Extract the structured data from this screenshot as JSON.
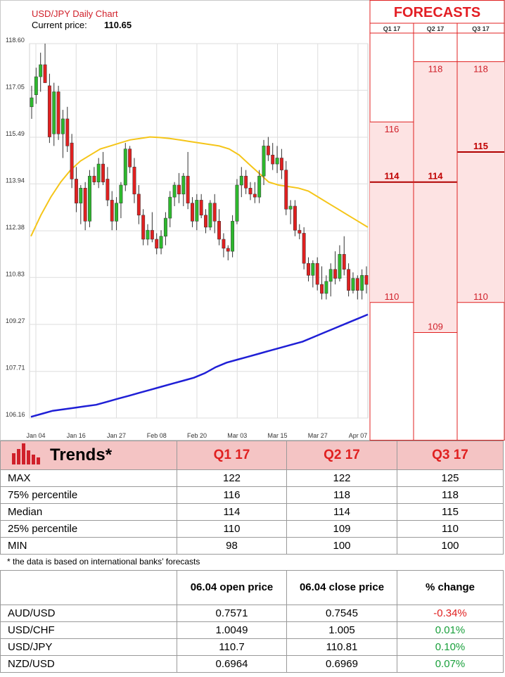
{
  "chart_data": {
    "type": "candlestick",
    "title": "USD/JPY Daily Chart",
    "current_price_label": "Current price:",
    "current_price": "110.65",
    "y_ticks": [
      "118.60",
      "117.05",
      "115.49",
      "113.94",
      "112.38",
      "110.83",
      "109.27",
      "107.71",
      "106.16"
    ],
    "ylim": [
      106.16,
      118.6
    ],
    "x_ticks": [
      "Jan 04",
      "Jan 16",
      "Jan 27",
      "Feb 08",
      "Feb 20",
      "Mar 03",
      "Mar 15",
      "Mar 27",
      "Apr 07"
    ],
    "candles": [
      {
        "o": 116.5,
        "h": 117.2,
        "l": 116.1,
        "c": 116.8
      },
      {
        "o": 116.9,
        "h": 117.8,
        "l": 116.6,
        "c": 117.5
      },
      {
        "o": 117.5,
        "h": 118.3,
        "l": 117.0,
        "c": 117.9
      },
      {
        "o": 117.9,
        "h": 118.6,
        "l": 117.3,
        "c": 117.3
      },
      {
        "o": 117.2,
        "h": 117.6,
        "l": 115.3,
        "c": 115.5
      },
      {
        "o": 115.6,
        "h": 117.3,
        "l": 115.2,
        "c": 117.0
      },
      {
        "o": 117.0,
        "h": 117.2,
        "l": 115.4,
        "c": 115.6
      },
      {
        "o": 115.6,
        "h": 116.4,
        "l": 114.8,
        "c": 116.1
      },
      {
        "o": 116.1,
        "h": 116.5,
        "l": 115.0,
        "c": 115.2
      },
      {
        "o": 115.3,
        "h": 115.6,
        "l": 113.8,
        "c": 114.1
      },
      {
        "o": 114.1,
        "h": 114.5,
        "l": 113.0,
        "c": 113.3
      },
      {
        "o": 113.3,
        "h": 113.9,
        "l": 112.6,
        "c": 113.8
      },
      {
        "o": 113.8,
        "h": 114.0,
        "l": 112.4,
        "c": 112.7
      },
      {
        "o": 112.7,
        "h": 114.4,
        "l": 112.5,
        "c": 114.2
      },
      {
        "o": 114.2,
        "h": 114.5,
        "l": 113.9,
        "c": 114.0
      },
      {
        "o": 114.0,
        "h": 114.8,
        "l": 113.8,
        "c": 114.6
      },
      {
        "o": 114.6,
        "h": 115.0,
        "l": 113.9,
        "c": 114.0
      },
      {
        "o": 114.1,
        "h": 114.5,
        "l": 113.2,
        "c": 113.4
      },
      {
        "o": 113.4,
        "h": 113.7,
        "l": 112.4,
        "c": 112.7
      },
      {
        "o": 112.7,
        "h": 113.5,
        "l": 112.4,
        "c": 113.3
      },
      {
        "o": 113.3,
        "h": 114.0,
        "l": 112.8,
        "c": 113.9
      },
      {
        "o": 113.9,
        "h": 115.3,
        "l": 113.7,
        "c": 115.1
      },
      {
        "o": 115.1,
        "h": 115.2,
        "l": 114.3,
        "c": 114.5
      },
      {
        "o": 114.5,
        "h": 114.8,
        "l": 113.3,
        "c": 113.6
      },
      {
        "o": 113.6,
        "h": 113.9,
        "l": 112.6,
        "c": 112.9
      },
      {
        "o": 112.9,
        "h": 113.1,
        "l": 111.9,
        "c": 112.1
      },
      {
        "o": 112.1,
        "h": 112.6,
        "l": 111.9,
        "c": 112.4
      },
      {
        "o": 112.4,
        "h": 113.0,
        "l": 112.0,
        "c": 112.1
      },
      {
        "o": 112.1,
        "h": 112.3,
        "l": 111.6,
        "c": 111.8
      },
      {
        "o": 111.8,
        "h": 112.4,
        "l": 111.6,
        "c": 112.2
      },
      {
        "o": 112.2,
        "h": 113.0,
        "l": 111.9,
        "c": 112.8
      },
      {
        "o": 112.8,
        "h": 113.7,
        "l": 112.5,
        "c": 113.5
      },
      {
        "o": 113.5,
        "h": 114.0,
        "l": 113.2,
        "c": 113.9
      },
      {
        "o": 113.9,
        "h": 114.3,
        "l": 113.3,
        "c": 113.6
      },
      {
        "o": 113.6,
        "h": 114.3,
        "l": 113.2,
        "c": 114.2
      },
      {
        "o": 114.2,
        "h": 115.0,
        "l": 113.1,
        "c": 113.3
      },
      {
        "o": 113.3,
        "h": 113.5,
        "l": 112.5,
        "c": 112.7
      },
      {
        "o": 112.7,
        "h": 113.6,
        "l": 112.4,
        "c": 113.4
      },
      {
        "o": 113.4,
        "h": 113.6,
        "l": 112.8,
        "c": 112.9
      },
      {
        "o": 112.9,
        "h": 113.1,
        "l": 112.3,
        "c": 112.5
      },
      {
        "o": 112.5,
        "h": 113.4,
        "l": 112.4,
        "c": 113.3
      },
      {
        "o": 113.3,
        "h": 113.6,
        "l": 112.3,
        "c": 112.7
      },
      {
        "o": 112.7,
        "h": 113.1,
        "l": 111.9,
        "c": 112.1
      },
      {
        "o": 112.1,
        "h": 112.3,
        "l": 111.5,
        "c": 111.8
      },
      {
        "o": 111.8,
        "h": 111.9,
        "l": 111.4,
        "c": 111.7
      },
      {
        "o": 111.7,
        "h": 112.9,
        "l": 111.5,
        "c": 112.7
      },
      {
        "o": 112.7,
        "h": 114.1,
        "l": 112.6,
        "c": 113.9
      },
      {
        "o": 113.9,
        "h": 114.5,
        "l": 113.5,
        "c": 114.2
      },
      {
        "o": 114.2,
        "h": 114.4,
        "l": 113.6,
        "c": 113.8
      },
      {
        "o": 113.8,
        "h": 114.0,
        "l": 113.4,
        "c": 113.6
      },
      {
        "o": 113.6,
        "h": 114.0,
        "l": 113.3,
        "c": 113.5
      },
      {
        "o": 113.5,
        "h": 114.4,
        "l": 113.3,
        "c": 114.2
      },
      {
        "o": 114.2,
        "h": 115.4,
        "l": 113.9,
        "c": 115.2
      },
      {
        "o": 115.2,
        "h": 115.5,
        "l": 114.7,
        "c": 114.9
      },
      {
        "o": 114.9,
        "h": 115.3,
        "l": 114.4,
        "c": 114.6
      },
      {
        "o": 114.6,
        "h": 115.2,
        "l": 114.3,
        "c": 114.8
      },
      {
        "o": 114.8,
        "h": 115.1,
        "l": 114.1,
        "c": 114.4
      },
      {
        "o": 114.4,
        "h": 114.7,
        "l": 112.9,
        "c": 113.1
      },
      {
        "o": 113.1,
        "h": 113.4,
        "l": 112.6,
        "c": 113.2
      },
      {
        "o": 113.2,
        "h": 113.4,
        "l": 112.2,
        "c": 112.4
      },
      {
        "o": 112.4,
        "h": 112.6,
        "l": 112.1,
        "c": 112.3
      },
      {
        "o": 112.3,
        "h": 112.5,
        "l": 111.1,
        "c": 111.3
      },
      {
        "o": 111.3,
        "h": 111.5,
        "l": 110.7,
        "c": 110.9
      },
      {
        "o": 110.9,
        "h": 111.4,
        "l": 110.5,
        "c": 111.3
      },
      {
        "o": 111.3,
        "h": 111.5,
        "l": 110.4,
        "c": 110.6
      },
      {
        "o": 110.6,
        "h": 111.2,
        "l": 110.1,
        "c": 110.3
      },
      {
        "o": 110.3,
        "h": 110.9,
        "l": 110.1,
        "c": 110.7
      },
      {
        "o": 110.7,
        "h": 111.3,
        "l": 110.2,
        "c": 111.1
      },
      {
        "o": 111.1,
        "h": 111.7,
        "l": 110.6,
        "c": 110.8
      },
      {
        "o": 110.8,
        "h": 111.9,
        "l": 110.7,
        "c": 111.6
      },
      {
        "o": 111.6,
        "h": 112.2,
        "l": 110.9,
        "c": 111.1
      },
      {
        "o": 111.1,
        "h": 111.3,
        "l": 110.2,
        "c": 110.4
      },
      {
        "o": 110.4,
        "h": 111.0,
        "l": 110.3,
        "c": 110.8
      },
      {
        "o": 110.8,
        "h": 110.9,
        "l": 110.1,
        "c": 110.4
      },
      {
        "o": 110.4,
        "h": 111.1,
        "l": 110.1,
        "c": 110.9
      },
      {
        "o": 110.9,
        "h": 111.2,
        "l": 110.3,
        "c": 110.6
      }
    ],
    "ma_short": [
      112.2,
      112.9,
      113.5,
      114.0,
      114.4,
      114.7,
      114.9,
      115.1,
      115.2,
      115.3,
      115.4,
      115.45,
      115.5,
      115.48,
      115.45,
      115.4,
      115.35,
      115.3,
      115.25,
      115.2,
      115.1,
      114.9,
      114.6,
      114.3,
      114.0,
      113.9,
      113.85,
      113.8,
      113.7,
      113.5,
      113.3,
      113.1,
      112.9,
      112.7,
      112.5
    ],
    "ma_long": [
      106.2,
      106.3,
      106.4,
      106.45,
      106.5,
      106.55,
      106.6,
      106.7,
      106.8,
      106.9,
      107.0,
      107.1,
      107.2,
      107.3,
      107.4,
      107.5,
      107.65,
      107.85,
      108.0,
      108.1,
      108.2,
      108.3,
      108.4,
      108.5,
      108.6,
      108.7,
      108.85,
      109.0,
      109.15,
      109.3,
      109.45,
      109.6
    ],
    "forecast_header": "FORECASTS",
    "forecast_quarters": [
      "Q1 17",
      "Q2 17",
      "Q3 17"
    ],
    "forecast_values": {
      "q1": {
        "p75": "116",
        "median": "114",
        "p25": "110"
      },
      "q2": {
        "p75": "118",
        "median": "114",
        "p25": "109"
      },
      "q3": {
        "p75": "118",
        "median": "115",
        "p25": "110"
      }
    },
    "colors": {
      "up": "#2db82d",
      "down": "#e02020",
      "ma_short": "#f5c518",
      "ma_long": "#1f1fd6",
      "forecast_fill": "#fde3e3",
      "forecast_line": "#e02020",
      "accent": "#e31e24"
    }
  },
  "trends": {
    "title": "Trends*",
    "headers": [
      "Q1 17",
      "Q2 17",
      "Q3 17"
    ],
    "rows": [
      {
        "label": "MAX",
        "values": [
          "122",
          "122",
          "125"
        ]
      },
      {
        "label": "75% percentile",
        "values": [
          "116",
          "118",
          "118"
        ]
      },
      {
        "label": "Median",
        "values": [
          "114",
          "114",
          "115"
        ]
      },
      {
        "label": "25% percentile",
        "values": [
          "110",
          "109",
          "110"
        ]
      },
      {
        "label": "MIN",
        "values": [
          "98",
          "100",
          "100"
        ]
      }
    ],
    "footnote": "* the data is based on international banks’ forecasts"
  },
  "prices": {
    "headers": [
      "06.04 open price",
      "06.04 close price",
      "% change"
    ],
    "rows": [
      {
        "pair": "AUD/USD",
        "open": "0.7571",
        "close": "0.7545",
        "change": "-0.34%",
        "dir": "neg"
      },
      {
        "pair": "USD/CHF",
        "open": "1.0049",
        "close": "1.005",
        "change": "0.01%",
        "dir": "pos"
      },
      {
        "pair": "USD/JPY",
        "open": "110.7",
        "close": "110.81",
        "change": "0.10%",
        "dir": "pos"
      },
      {
        "pair": "NZD/USD",
        "open": "0.6964",
        "close": "0.6969",
        "change": "0.07%",
        "dir": "pos"
      }
    ]
  }
}
